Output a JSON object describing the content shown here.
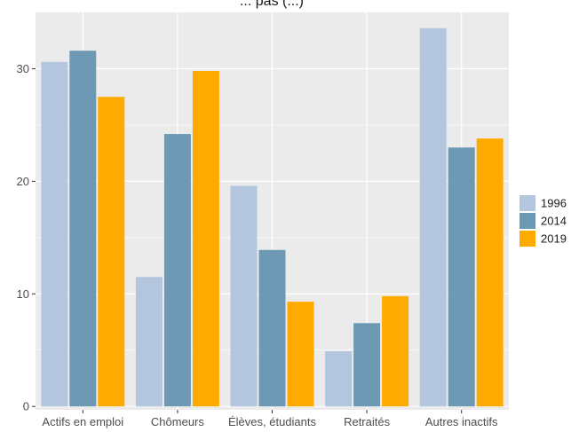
{
  "chart_data": {
    "type": "bar",
    "title": "... pas (...)",
    "xlabel": "",
    "ylabel": "",
    "categories": [
      "Actifs en emploi",
      "Chômeurs",
      "Élèves, étudiants",
      "Retraités",
      "Autres inactifs"
    ],
    "series": [
      {
        "name": "1996",
        "color": "#b3c6de",
        "values": [
          30.6,
          11.5,
          19.6,
          4.9,
          33.6
        ]
      },
      {
        "name": "2014",
        "color": "#6e99b4",
        "values": [
          31.6,
          24.2,
          13.9,
          7.4,
          23.0
        ]
      },
      {
        "name": "2019",
        "color": "#ffaa00",
        "values": [
          27.5,
          29.8,
          9.3,
          9.8,
          23.8
        ]
      }
    ],
    "ylim": [
      -0.3,
      35
    ],
    "yticks": [
      0,
      10,
      20,
      30
    ],
    "grid": true,
    "legend_position": "right",
    "panel_color": "#ebebeb",
    "grid_color": "#ffffff"
  }
}
